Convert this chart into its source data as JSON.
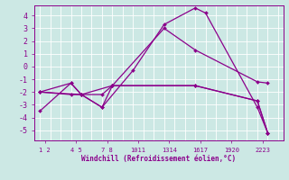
{
  "xlabel": "Windchill (Refroidissement éolien,°C)",
  "bg_color": "#cce8e4",
  "grid_color": "#b0d8d4",
  "line_color": "#8B008B",
  "xtick_pairs": [
    "1 2",
    "4 5",
    "7 8",
    "1011",
    "1314",
    "1617",
    "1920",
    "2223"
  ],
  "xtick_positions": [
    1.5,
    4.5,
    7.5,
    10.5,
    13.5,
    16.5,
    19.5,
    22.5
  ],
  "yticks": [
    -5,
    -4,
    -3,
    -2,
    -1,
    0,
    1,
    2,
    3,
    4
  ],
  "ylim": [
    -5.8,
    4.8
  ],
  "xlim": [
    0.5,
    24.5
  ],
  "series": [
    {
      "x": [
        1,
        4,
        5,
        7,
        10,
        13,
        16,
        17,
        22,
        23
      ],
      "y": [
        -3.5,
        -1.3,
        -2.2,
        -3.2,
        -0.3,
        3.3,
        4.6,
        4.2,
        -3.2,
        -5.2
      ]
    },
    {
      "x": [
        1,
        4,
        5,
        7,
        8,
        13,
        16,
        22,
        23
      ],
      "y": [
        -2.0,
        -1.3,
        -2.2,
        -2.2,
        -1.5,
        3.0,
        1.3,
        -1.2,
        -1.3
      ]
    },
    {
      "x": [
        1,
        5,
        7,
        8,
        16,
        22,
        23
      ],
      "y": [
        -2.0,
        -2.2,
        -3.2,
        -1.5,
        -1.5,
        -2.7,
        -5.2
      ]
    },
    {
      "x": [
        1,
        4,
        5,
        8,
        16,
        22,
        23
      ],
      "y": [
        -2.0,
        -2.2,
        -2.2,
        -1.5,
        -1.5,
        -2.7,
        -5.2
      ]
    }
  ]
}
